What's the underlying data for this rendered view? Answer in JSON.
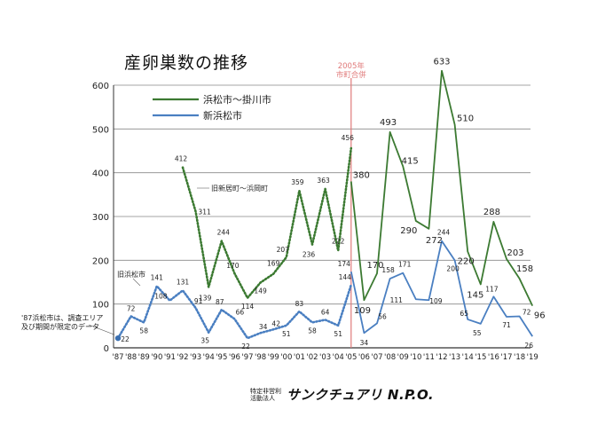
{
  "title": "産卵巣数の推移",
  "merger_label_1": "2005年",
  "merger_label_2": "市町合併",
  "note": "'87浜松市は、調査エリア及び期間が限定のデータ",
  "logo_line1": "特定非営利",
  "logo_line2": "活動法人",
  "logo_main": "サンクチュアリ N.P.O.",
  "chart_data": {
    "type": "line",
    "title": "産卵巣数の推移",
    "ylim": [
      0,
      600
    ],
    "yticks": [
      0,
      100,
      200,
      300,
      400,
      500,
      600
    ],
    "categories": [
      "'87",
      "'88",
      "'89",
      "'90",
      "'91",
      "'92",
      "'93",
      "'94",
      "'95",
      "'96",
      "'97",
      "'98",
      "'99",
      "'00",
      "'01",
      "'02",
      "'03",
      "'04",
      "'05",
      "'06",
      "'07",
      "'08",
      "'09",
      "'10",
      "'11",
      "'12",
      "'13",
      "'14",
      "'15",
      "'16",
      "'17",
      "'18",
      "'19"
    ],
    "grid": true,
    "legend_position": "top-left",
    "series": [
      {
        "name": "浜松市〜掛川市",
        "color": "#3c7a32",
        "style": "solid",
        "values": [
          null,
          null,
          null,
          null,
          null,
          null,
          null,
          null,
          null,
          null,
          null,
          null,
          null,
          null,
          null,
          null,
          null,
          null,
          380,
          109,
          170,
          493,
          415,
          290,
          272,
          633,
          510,
          220,
          145,
          288,
          203,
          158,
          96
        ]
      },
      {
        "name": "旧新居町〜浜岡町",
        "color": "#3c7a32",
        "style": "dotted",
        "values": [
          null,
          null,
          null,
          null,
          null,
          412,
          311,
          139,
          244,
          170,
          114,
          149,
          169,
          207,
          359,
          236,
          363,
          222,
          456,
          null,
          null,
          null,
          null,
          null,
          null,
          null,
          null,
          null,
          null,
          null,
          null,
          null,
          null
        ]
      },
      {
        "name": "新浜松市",
        "color": "#4a7fc1",
        "style": "solid",
        "values": [
          null,
          null,
          null,
          null,
          null,
          null,
          null,
          null,
          null,
          null,
          null,
          null,
          null,
          null,
          null,
          null,
          null,
          null,
          174,
          34,
          56,
          158,
          171,
          111,
          109,
          244,
          200,
          65,
          55,
          117,
          71,
          72,
          26
        ]
      },
      {
        "name": "旧浜松市",
        "color": "#4a7fc1",
        "style": "dotted",
        "values": [
          22,
          72,
          58,
          141,
          108,
          131,
          91,
          35,
          87,
          66,
          22,
          34,
          42,
          51,
          83,
          58,
          64,
          51,
          144,
          null,
          null,
          null,
          null,
          null,
          null,
          null,
          null,
          null,
          null,
          null,
          null,
          null,
          null
        ]
      }
    ],
    "value_labels": {
      "浜松市〜掛川市": [
        "380",
        "109",
        "170",
        "493",
        "415",
        "290",
        "272",
        "633",
        "510",
        "220",
        "145",
        "288",
        "203",
        "158",
        "96"
      ],
      "旧新居町〜浜岡町": [
        "412",
        "311",
        "139",
        "244",
        "170",
        "114",
        "149",
        "169",
        "207",
        "359",
        "236",
        "363",
        "222",
        "456"
      ],
      "新浜松市": [
        "174",
        "34",
        "56",
        "158",
        "171",
        "111",
        "109",
        "244",
        "200",
        "65",
        "55",
        "117",
        "71",
        "72",
        "26"
      ],
      "旧浜松市": [
        "22",
        "72",
        "58",
        "141",
        "108",
        "131",
        "91",
        "35",
        "87",
        "66",
        "22",
        "34",
        "42",
        "51",
        "83",
        "58",
        "64",
        "51",
        "144"
      ]
    },
    "legend": [
      "浜松市〜掛川市",
      "新浜松市"
    ],
    "inline_labels": [
      "旧新居町〜浜岡町",
      "旧浜松市"
    ],
    "merger_year": "'05"
  },
  "colors": {
    "green": "#3c7a32",
    "blue": "#4a7fc1",
    "merger_line": "#e07a7a",
    "grid": "#888888"
  }
}
